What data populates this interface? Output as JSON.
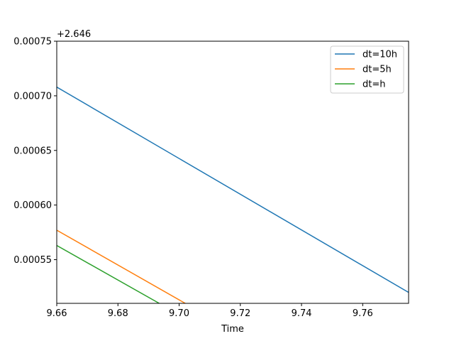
{
  "chart_data": {
    "type": "line",
    "title": "",
    "xlabel": "Time",
    "ylabel": "",
    "offset_label": "+2.646",
    "xlim": [
      9.66,
      9.775
    ],
    "ylim": [
      0.00051,
      0.00075
    ],
    "x_ticks": [
      9.66,
      9.68,
      9.7,
      9.72,
      9.74,
      9.76
    ],
    "x_tick_labels": [
      "9.66",
      "9.68",
      "9.70",
      "9.72",
      "9.74",
      "9.76"
    ],
    "y_ticks": [
      0.00055,
      0.0006,
      0.00065,
      0.0007,
      0.00075
    ],
    "y_tick_labels": [
      "0.00055",
      "0.00060",
      "0.00065",
      "0.00070",
      "0.00075"
    ],
    "grid": false,
    "legend_position": "top-right",
    "series": [
      {
        "name": "dt=10h",
        "color": "#1f77b4",
        "x": [
          9.66,
          9.775
        ],
        "y": [
          0.000708,
          0.00052
        ]
      },
      {
        "name": "dt=5h",
        "color": "#ff7f0e",
        "x": [
          9.66,
          9.702
        ],
        "y": [
          0.000577,
          0.00051
        ]
      },
      {
        "name": "dt=h",
        "color": "#2ca02c",
        "x": [
          9.66,
          9.6935
        ],
        "y": [
          0.000563,
          0.00051
        ]
      }
    ]
  }
}
